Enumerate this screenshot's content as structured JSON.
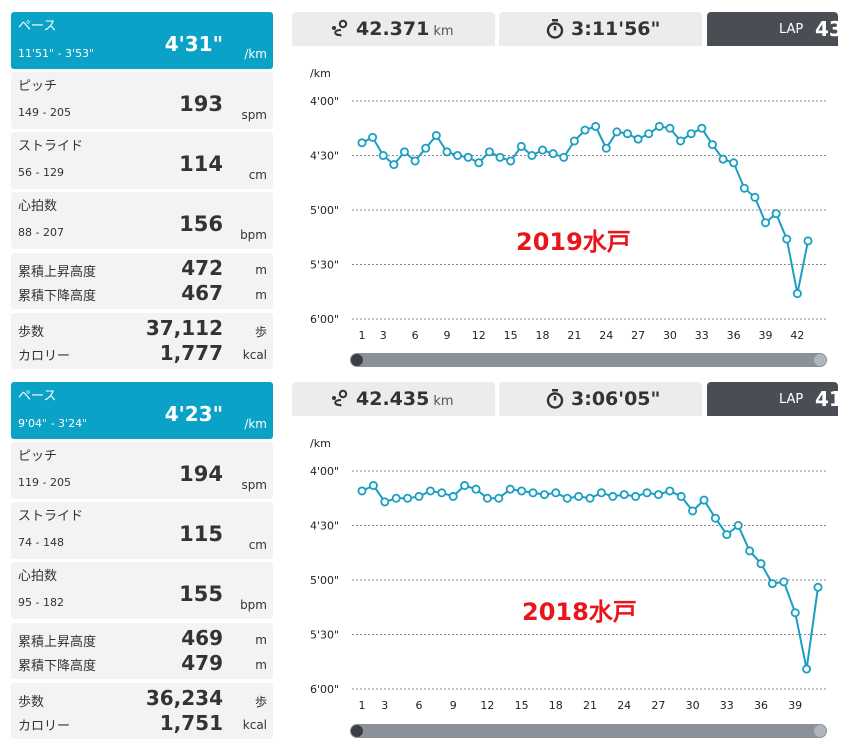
{
  "panels": [
    {
      "pace": {
        "label": "ペース",
        "range": "11'51\" - 3'53\"",
        "value": "4'31\"",
        "unit": "/km"
      },
      "pitch": {
        "label": "ピッチ",
        "range": "149 - 205",
        "value": "193",
        "unit": "spm"
      },
      "stride": {
        "label": "ストライド",
        "range": "56 - 129",
        "value": "114",
        "unit": "cm"
      },
      "heart": {
        "label": "心拍数",
        "range": "88 - 207",
        "value": "156",
        "unit": "bpm"
      },
      "elev": {
        "up_label": "累積上昇高度",
        "up_value": "472",
        "up_unit": "m",
        "down_label": "累積下降高度",
        "down_value": "467",
        "down_unit": "m"
      },
      "steps": {
        "steps_label": "歩数",
        "steps_value": "37,112",
        "steps_unit": "歩",
        "cal_label": "カロリー",
        "cal_value": "1,777",
        "cal_unit": "kcal"
      },
      "summary": {
        "distance": "42.371",
        "distance_unit": "km",
        "time": "3:11'56\"",
        "lap_label": "LAP",
        "lap_count": "43"
      },
      "race_label": "2019水戸",
      "chart_data": {
        "type": "line",
        "ylabel": "/km",
        "y_ticks": [
          "4'00\"",
          "4'30\"",
          "5'00\"",
          "5'30\"",
          "6'00\""
        ],
        "y_min_sec": 240,
        "y_max_sec": 360,
        "x_ticks": [
          1,
          3,
          6,
          9,
          12,
          15,
          18,
          21,
          24,
          27,
          30,
          33,
          36,
          39,
          42
        ],
        "x": [
          1,
          2,
          3,
          4,
          5,
          6,
          7,
          8,
          9,
          10,
          11,
          12,
          13,
          14,
          15,
          16,
          17,
          18,
          19,
          20,
          21,
          22,
          23,
          24,
          25,
          26,
          27,
          28,
          29,
          30,
          31,
          32,
          33,
          34,
          35,
          36,
          37,
          38,
          39,
          40,
          41,
          42,
          43
        ],
        "values_sec": [
          263,
          260,
          270,
          275,
          268,
          273,
          266,
          259,
          268,
          270,
          271,
          274,
          268,
          271,
          273,
          265,
          270,
          267,
          269,
          271,
          262,
          256,
          254,
          266,
          257,
          258,
          261,
          258,
          254,
          255,
          262,
          258,
          255,
          264,
          272,
          274,
          288,
          293,
          307,
          302,
          316,
          346,
          317
        ]
      }
    },
    {
      "pace": {
        "label": "ペース",
        "range": "9'04\" - 3'24\"",
        "value": "4'23\"",
        "unit": "/km"
      },
      "pitch": {
        "label": "ピッチ",
        "range": "119 - 205",
        "value": "194",
        "unit": "spm"
      },
      "stride": {
        "label": "ストライド",
        "range": "74 - 148",
        "value": "115",
        "unit": "cm"
      },
      "heart": {
        "label": "心拍数",
        "range": "95 - 182",
        "value": "155",
        "unit": "bpm"
      },
      "elev": {
        "up_label": "累積上昇高度",
        "up_value": "469",
        "up_unit": "m",
        "down_label": "累積下降高度",
        "down_value": "479",
        "down_unit": "m"
      },
      "steps": {
        "steps_label": "歩数",
        "steps_value": "36,234",
        "steps_unit": "歩",
        "cal_label": "カロリー",
        "cal_value": "1,751",
        "cal_unit": "kcal"
      },
      "summary": {
        "distance": "42.435",
        "distance_unit": "km",
        "time": "3:06'05\"",
        "lap_label": "LAP",
        "lap_count": "41"
      },
      "race_label": "2018水戸",
      "chart_data": {
        "type": "line",
        "ylabel": "/km",
        "y_ticks": [
          "4'00\"",
          "4'30\"",
          "5'00\"",
          "5'30\"",
          "6'00\""
        ],
        "y_min_sec": 240,
        "y_max_sec": 360,
        "x_ticks": [
          1,
          3,
          6,
          9,
          12,
          15,
          18,
          21,
          24,
          27,
          30,
          33,
          36,
          39
        ],
        "x": [
          1,
          2,
          3,
          4,
          5,
          6,
          7,
          8,
          9,
          10,
          11,
          12,
          13,
          14,
          15,
          16,
          17,
          18,
          19,
          20,
          21,
          22,
          23,
          24,
          25,
          26,
          27,
          28,
          29,
          30,
          31,
          32,
          33,
          34,
          35,
          36,
          37,
          38,
          39,
          40,
          41
        ],
        "values_sec": [
          251,
          248,
          257,
          255,
          255,
          254,
          251,
          252,
          254,
          248,
          250,
          255,
          255,
          250,
          251,
          252,
          253,
          252,
          255,
          254,
          255,
          252,
          254,
          253,
          254,
          252,
          253,
          251,
          254,
          262,
          256,
          266,
          275,
          270,
          284,
          291,
          302,
          301,
          318,
          349,
          304
        ]
      }
    }
  ],
  "colors": {
    "line": "#1a9ec2",
    "pace_bg": "#0aa2c6",
    "label_red": "#e8151a",
    "lap_bg": "#4a4d53"
  }
}
